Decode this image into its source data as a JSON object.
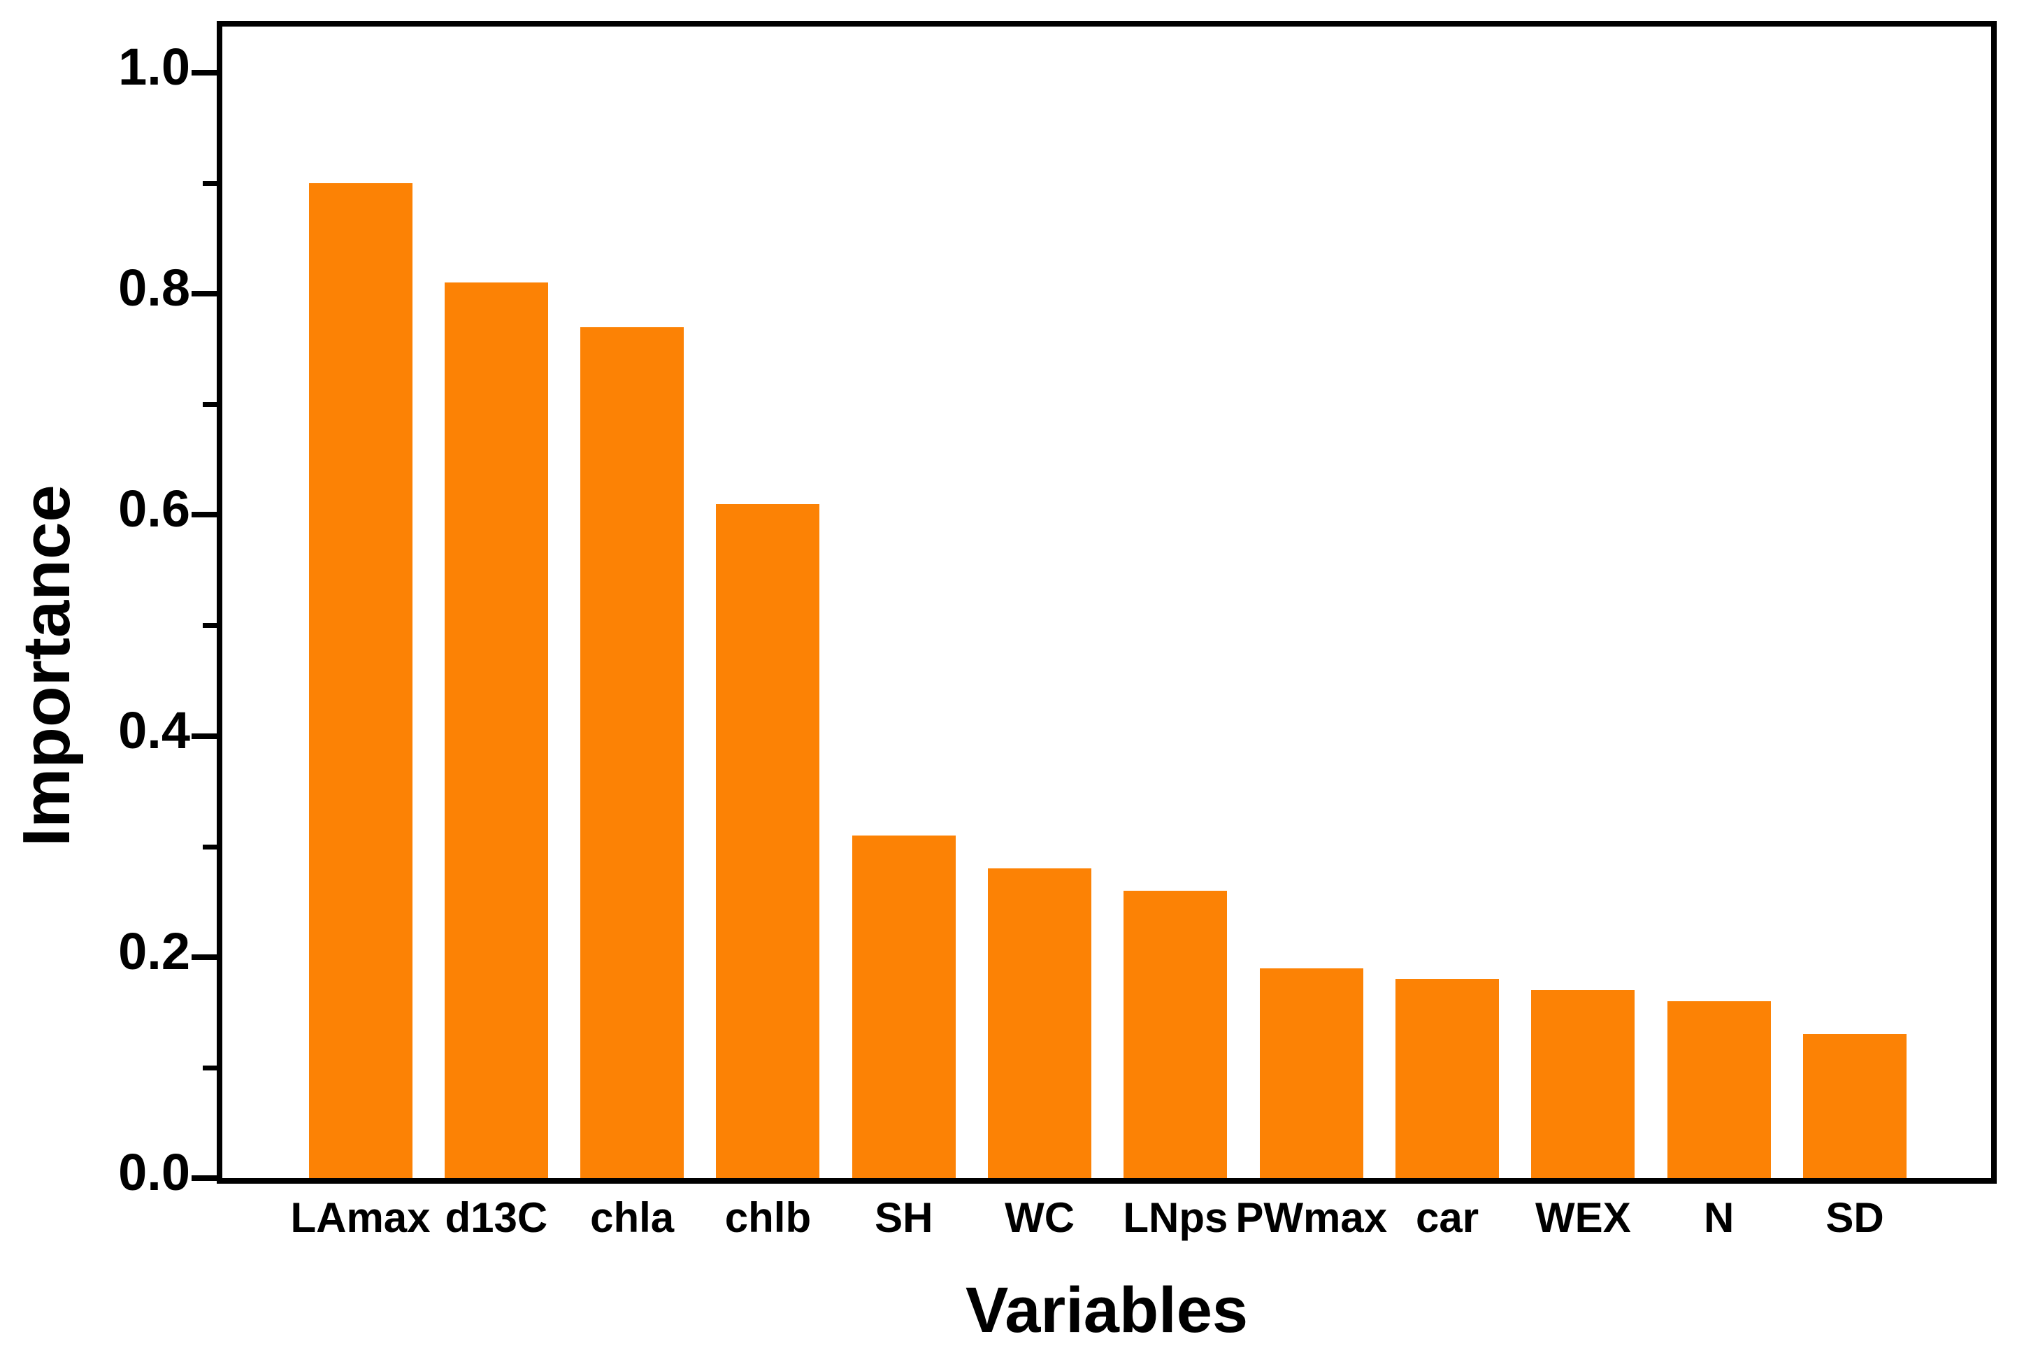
{
  "chart_data": {
    "type": "bar",
    "title": "",
    "categories": [
      "LAmax",
      "d13C",
      "chla",
      "chlb",
      "SH",
      "WC",
      "LNps",
      "PWmax",
      "car",
      "WEX",
      "N",
      "SD"
    ],
    "values": [
      0.9,
      0.81,
      0.77,
      0.61,
      0.31,
      0.28,
      0.26,
      0.19,
      0.18,
      0.17,
      0.16,
      0.13
    ],
    "xlabel": "Variables",
    "ylabel": "Importance",
    "ylim": [
      0,
      1.0417
    ],
    "y_major_ticks": [
      0.0,
      0.2,
      0.4,
      0.6,
      0.8,
      1.0
    ],
    "y_major_tick_labels": [
      "0.0",
      "0.2",
      "0.4",
      "0.6",
      "0.8",
      "1.0"
    ],
    "y_minor_ticks": [
      0.1,
      0.3,
      0.5,
      0.7,
      0.9
    ],
    "x_ticks_visible": false,
    "grid": false,
    "legend": false,
    "bar_color": "#FC8205",
    "frame_color": "#000000",
    "text_color": "#000000"
  }
}
